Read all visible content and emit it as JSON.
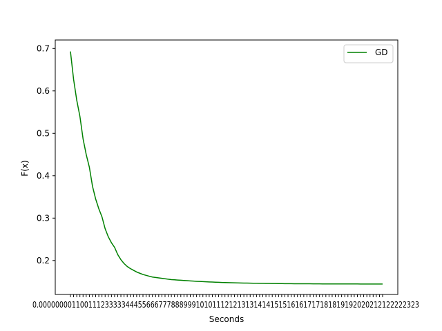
{
  "chart_data": {
    "type": "line",
    "title": "",
    "xlabel": "Seconds",
    "ylabel": "F(x)",
    "x_tick_labels_overlapping": true,
    "x_point_count": 100,
    "ylim": [
      0.12,
      0.72
    ],
    "y_ticks": [
      "0.2",
      "0.3",
      "0.4",
      "0.5",
      "0.6",
      "0.7"
    ],
    "grid": false,
    "legend_position": "top-right",
    "series": [
      {
        "name": "GD",
        "color": "#008000",
        "values": [
          0.693,
          0.627,
          0.578,
          0.54,
          0.487,
          0.45,
          0.42,
          0.375,
          0.345,
          0.322,
          0.303,
          0.275,
          0.256,
          0.242,
          0.231,
          0.214,
          0.202,
          0.193,
          0.186,
          0.181,
          0.177,
          0.173,
          0.17,
          0.167,
          0.165,
          0.163,
          0.161,
          0.16,
          0.159,
          0.158,
          0.157,
          0.156,
          0.155,
          0.1545,
          0.154,
          0.1535,
          0.153,
          0.1525,
          0.152,
          0.1515,
          0.151,
          0.1506,
          0.1502,
          0.1498,
          0.1495,
          0.1492,
          0.1489,
          0.1486,
          0.1483,
          0.1481,
          0.1479,
          0.1477,
          0.1475,
          0.1473,
          0.1471,
          0.1469,
          0.1468,
          0.1466,
          0.1465,
          0.1464,
          0.1463,
          0.1462,
          0.1461,
          0.146,
          0.1459,
          0.1458,
          0.1457,
          0.1456,
          0.1455,
          0.1455,
          0.1454,
          0.1453,
          0.1453,
          0.1452,
          0.1452,
          0.1451,
          0.1451,
          0.145,
          0.145,
          0.145,
          0.1449,
          0.1449,
          0.1449,
          0.1448,
          0.1448,
          0.1448,
          0.1448,
          0.1447,
          0.1447,
          0.1447,
          0.1447,
          0.1447,
          0.1446,
          0.1446,
          0.1446,
          0.1446,
          0.1446,
          0.1446,
          0.1446,
          0.1445
        ]
      }
    ]
  }
}
